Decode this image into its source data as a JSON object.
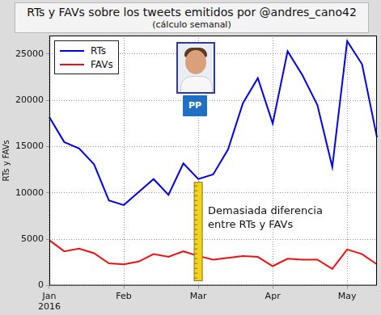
{
  "chart_data": {
    "type": "line",
    "title": "RTs y FAVs sobre los tweets emitidos por @andres_cano42",
    "subtitle": "(cálculo semanal)",
    "y_label": "RTs y FAVs",
    "categories": [
      "Jan\n2016",
      null,
      null,
      null,
      null,
      "Feb",
      null,
      null,
      null,
      null,
      "Mar",
      null,
      null,
      null,
      null,
      "Apr",
      null,
      null,
      null,
      null,
      "May",
      null,
      null
    ],
    "series": [
      {
        "name": "RTs",
        "color": "#0000ee",
        "values": [
          18200,
          15500,
          14800,
          13100,
          9200,
          8700,
          10100,
          11500,
          9800,
          13200,
          11500,
          12000,
          14700,
          19700,
          22400,
          17500,
          25300,
          22700,
          19500,
          12800,
          26400,
          23900,
          16000
        ]
      },
      {
        "name": "FAVs",
        "color": "#ee1111",
        "values": [
          4900,
          3700,
          4000,
          3500,
          2400,
          2300,
          2600,
          3400,
          3100,
          3700,
          3200,
          2800,
          3000,
          3200,
          3100,
          2100,
          2900,
          2800,
          2800,
          1800,
          3900,
          3400,
          2300
        ]
      }
    ],
    "ylim": [
      0,
      27000
    ],
    "yticks": [
      0,
      5000,
      10000,
      15000,
      20000,
      25000
    ],
    "grid": true,
    "legend": "upper left",
    "annotation": "Demasiada diferencia\nentre RTs y FAVs",
    "logo": "PP"
  }
}
